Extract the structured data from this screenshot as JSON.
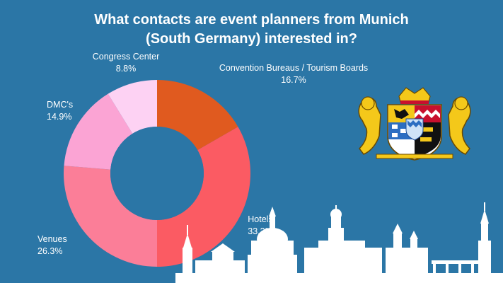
{
  "colors": {
    "background": "#2b76a6",
    "skyline": "#ffffff"
  },
  "title_line1": "What contacts are event planners from Munich",
  "title_line2": "(South Germany) interested in?",
  "emblem": {
    "icon": "bavarian-coat-of-arms-icon"
  },
  "skyline": {
    "icon": "city-skyline-silhouette"
  },
  "chart_data": {
    "type": "pie",
    "donut": true,
    "categories": [
      "Convention Bureaus / Tourism Boards",
      "Hotels",
      "Venues",
      "DMC's",
      "Congress Center"
    ],
    "values": [
      16.7,
      33.3,
      26.3,
      14.9,
      8.8
    ],
    "value_labels": [
      "16.7%",
      "33.3%",
      "26.3%",
      "14.9%",
      "8.8%"
    ],
    "colors": [
      "#e05a1f",
      "#fb5b63",
      "#fb7e98",
      "#fba4d4",
      "#fdd2f3"
    ],
    "start_angle_deg": 0,
    "direction": "clockwise"
  }
}
